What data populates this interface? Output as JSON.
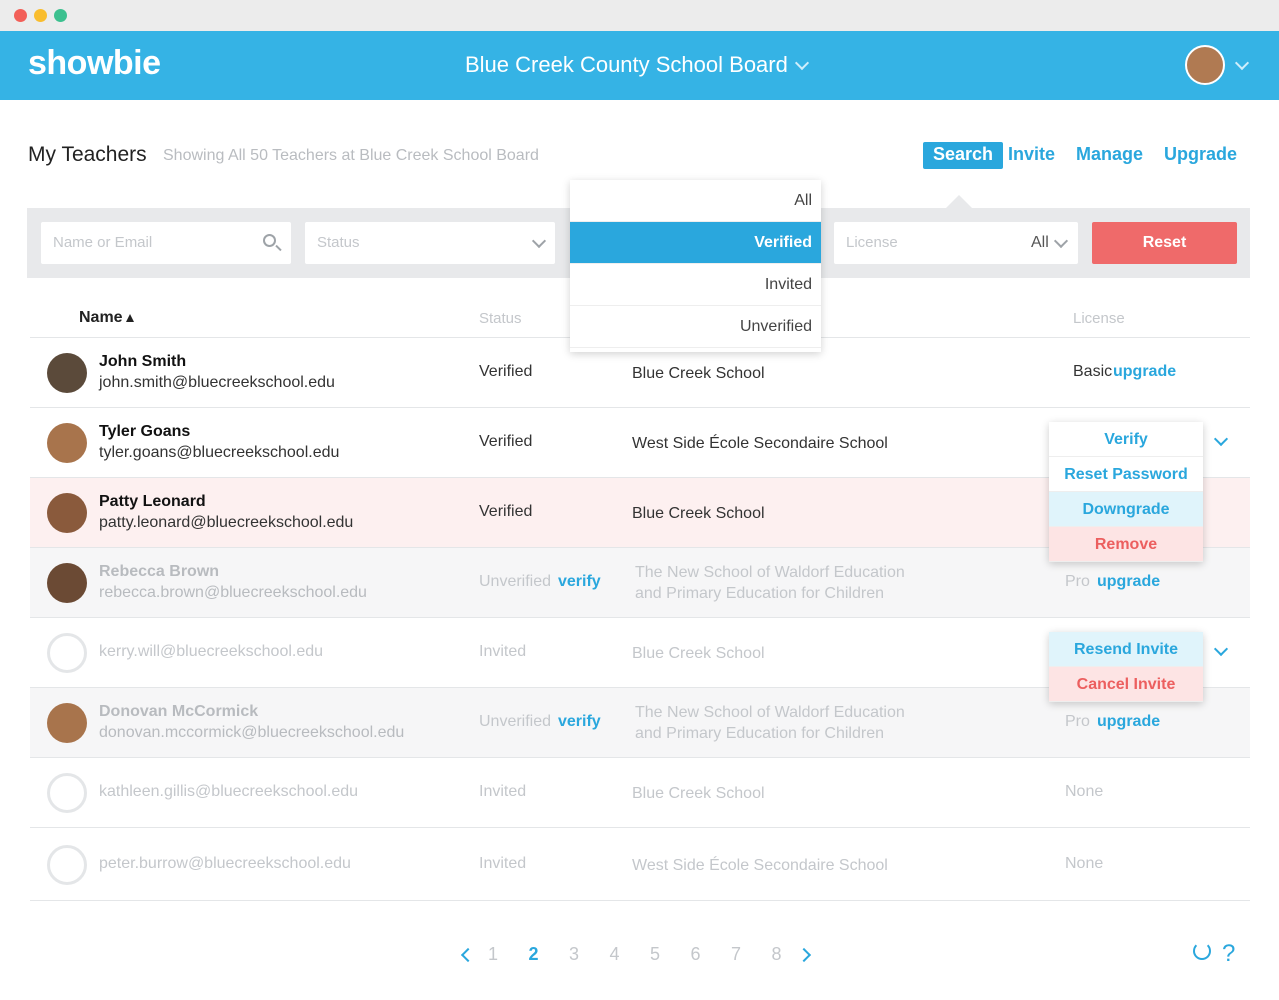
{
  "app": {
    "brand": "showbie",
    "org": "Blue Creek County School Board"
  },
  "header": {
    "title": "My Teachers",
    "subtitle": "Showing All 50 Teachers at Blue Creek School Board",
    "tabs": [
      "Search",
      "Invite",
      "Manage",
      "Upgrade"
    ]
  },
  "filters": {
    "name_placeholder": "Name or Email",
    "status_placeholder": "Status",
    "license_placeholder": "License",
    "license_value": "All",
    "reset": "Reset"
  },
  "status_dropdown": [
    "All",
    "Verified",
    "Invited",
    "Unverified"
  ],
  "columns": {
    "name": "Name",
    "status": "Status",
    "license": "License"
  },
  "rows": [
    {
      "name": "John Smith",
      "email": "john.smith@bluecreekschool.edu",
      "status": "Verified",
      "school": "Blue Creek School",
      "license": "Basic",
      "upgrade": "upgrade"
    },
    {
      "name": "Tyler Goans",
      "email": "tyler.goans@bluecreekschool.edu",
      "status": "Verified",
      "school": "West Side École Secondaire School"
    },
    {
      "name": "Patty Leonard",
      "email": "patty.leonard@bluecreekschool.edu",
      "status": "Verified",
      "school": "Blue Creek School"
    },
    {
      "name": "Rebecca Brown",
      "email": "rebecca.brown@bluecreekschool.edu",
      "status": "Unverified",
      "verify": "verify",
      "school": "The New School of Waldorf Education and Primary Education for Children",
      "license": "Pro",
      "upgrade": "upgrade"
    },
    {
      "email": "kerry.will@bluecreekschool.edu",
      "status": "Invited",
      "school": "Blue Creek School"
    },
    {
      "name": "Donovan McCormick",
      "email": "donovan.mccormick@bluecreekschool.edu",
      "status": "Unverified",
      "verify": "verify",
      "school": "The New School of Waldorf Education and Primary Education for Children",
      "license": "Pro",
      "upgrade": "upgrade"
    },
    {
      "email": "kathleen.gillis@bluecreekschool.edu",
      "status": "Invited",
      "school": "Blue Creek School",
      "license": "None"
    },
    {
      "email": "peter.burrow@bluecreekschool.edu",
      "status": "Invited",
      "school": "West Side École Secondaire School",
      "license": "None"
    }
  ],
  "menus": [
    [
      "Verify",
      "Reset Password",
      "Downgrade",
      "Remove"
    ],
    [
      "Resend Invite",
      "Cancel Invite"
    ]
  ],
  "pagination": {
    "pages": [
      1,
      2,
      3,
      4,
      5,
      6,
      7,
      8
    ],
    "current": 2,
    "help": "?"
  }
}
